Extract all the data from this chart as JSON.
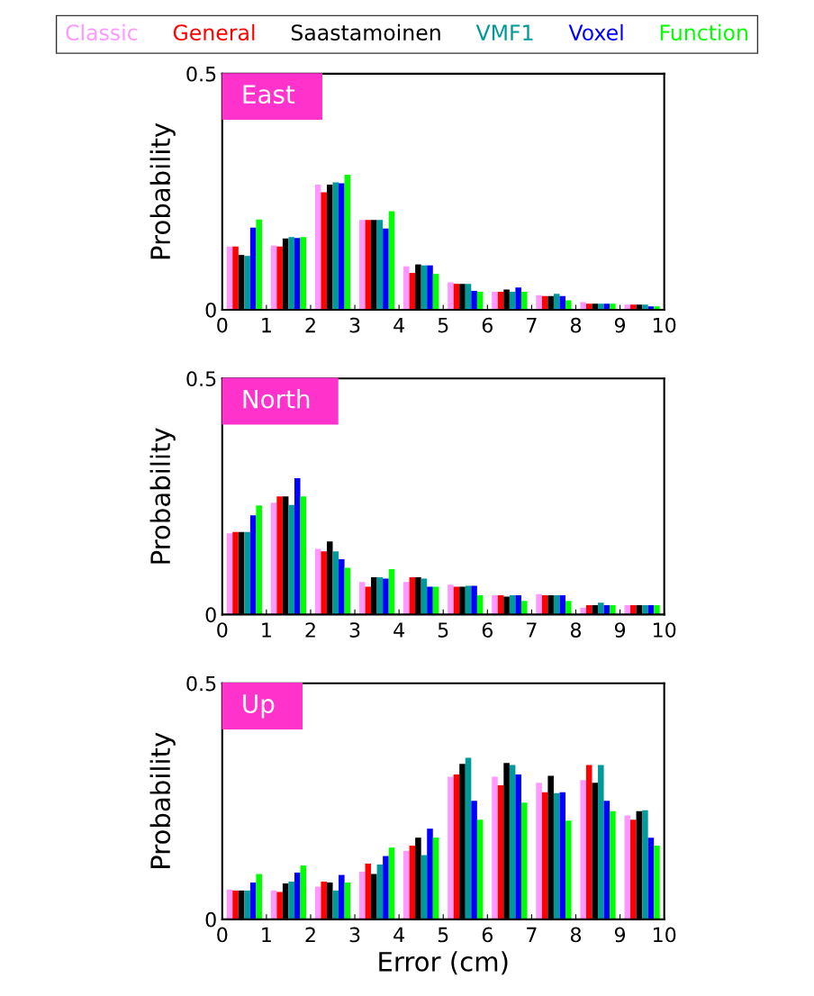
{
  "chart_data": [
    {
      "type": "bar",
      "title": "East",
      "ylabel": "Probability",
      "x": [
        0.5,
        1.5,
        2.5,
        3.5,
        4.5,
        5.5,
        6.5,
        7.5,
        8.5,
        9.5
      ],
      "xlim": [
        0,
        10
      ],
      "xticks": [
        0,
        1,
        2,
        3,
        4,
        5,
        6,
        7,
        8,
        9,
        10
      ],
      "ylim": [
        0,
        0.5
      ],
      "yticks": [
        0,
        0.5
      ],
      "grid": false,
      "legend": "top",
      "series": [
        {
          "name": "Classic",
          "color": "#ff99ff",
          "values": [
            0.134,
            0.136,
            0.265,
            0.19,
            0.092,
            0.058,
            0.038,
            0.031,
            0.016,
            0.011
          ]
        },
        {
          "name": "General",
          "color": "#ff0000",
          "values": [
            0.134,
            0.134,
            0.249,
            0.19,
            0.078,
            0.055,
            0.038,
            0.029,
            0.013,
            0.011
          ]
        },
        {
          "name": "Saastamoinen",
          "color": "#000000",
          "values": [
            0.116,
            0.151,
            0.265,
            0.19,
            0.096,
            0.055,
            0.043,
            0.029,
            0.013,
            0.011
          ]
        },
        {
          "name": "VMF1",
          "color": "#009999",
          "values": [
            0.114,
            0.154,
            0.27,
            0.19,
            0.094,
            0.055,
            0.038,
            0.034,
            0.013,
            0.011
          ]
        },
        {
          "name": "Voxel",
          "color": "#0000ff",
          "values": [
            0.174,
            0.152,
            0.268,
            0.172,
            0.094,
            0.04,
            0.047,
            0.029,
            0.013,
            0.007
          ]
        },
        {
          "name": "Function",
          "color": "#00ff00",
          "values": [
            0.191,
            0.154,
            0.286,
            0.209,
            0.076,
            0.038,
            0.038,
            0.02,
            0.013,
            0.007
          ]
        }
      ]
    },
    {
      "type": "bar",
      "title": "North",
      "ylabel": "Probability",
      "x": [
        0.5,
        1.5,
        2.5,
        3.5,
        4.5,
        5.5,
        6.5,
        7.5,
        8.5,
        9.5
      ],
      "xlim": [
        0,
        10
      ],
      "xticks": [
        0,
        1,
        2,
        3,
        4,
        5,
        6,
        7,
        8,
        9,
        10
      ],
      "ylim": [
        0,
        0.5
      ],
      "yticks": [
        0,
        0.5
      ],
      "grid": false,
      "series": [
        {
          "color": "#ff99ff",
          "values": [
            0.172,
            0.237,
            0.139,
            0.069,
            0.069,
            0.063,
            0.041,
            0.043,
            0.014,
            0.02
          ]
        },
        {
          "color": "#ff0000",
          "values": [
            0.175,
            0.25,
            0.134,
            0.059,
            0.079,
            0.059,
            0.041,
            0.041,
            0.02,
            0.02
          ]
        },
        {
          "color": "#000000",
          "values": [
            0.175,
            0.25,
            0.155,
            0.079,
            0.079,
            0.059,
            0.038,
            0.041,
            0.02,
            0.02
          ]
        },
        {
          "color": "#009999",
          "values": [
            0.175,
            0.232,
            0.134,
            0.079,
            0.076,
            0.061,
            0.041,
            0.041,
            0.025,
            0.02
          ]
        },
        {
          "color": "#0000ff",
          "values": [
            0.21,
            0.289,
            0.117,
            0.076,
            0.059,
            0.061,
            0.041,
            0.041,
            0.02,
            0.02
          ]
        },
        {
          "color": "#00ff00",
          "values": [
            0.231,
            0.25,
            0.099,
            0.096,
            0.059,
            0.041,
            0.029,
            0.029,
            0.02,
            0.02
          ]
        }
      ]
    },
    {
      "type": "bar",
      "title": "Up",
      "ylabel": "Probability",
      "xlabel": "Error (cm)",
      "x": [
        0.5,
        1.5,
        2.5,
        3.5,
        4.5,
        5.5,
        6.5,
        7.5,
        8.5,
        9.5
      ],
      "xlim": [
        0,
        10
      ],
      "xticks": [
        0,
        1,
        2,
        3,
        4,
        5,
        6,
        7,
        8,
        9,
        10
      ],
      "ylim": [
        0,
        0.5
      ],
      "yticks": [
        0,
        0.5
      ],
      "grid": false,
      "series": [
        {
          "color": "#ff99ff",
          "values": [
            0.063,
            0.061,
            0.069,
            0.101,
            0.145,
            0.302,
            0.302,
            0.289,
            0.295,
            0.22
          ]
        },
        {
          "color": "#ff0000",
          "values": [
            0.061,
            0.058,
            0.08,
            0.118,
            0.156,
            0.307,
            0.284,
            0.269,
            0.327,
            0.211
          ]
        },
        {
          "color": "#000000",
          "values": [
            0.061,
            0.076,
            0.078,
            0.096,
            0.173,
            0.329,
            0.331,
            0.304,
            0.289,
            0.229
          ]
        },
        {
          "color": "#009999",
          "values": [
            0.061,
            0.08,
            0.061,
            0.116,
            0.136,
            0.342,
            0.327,
            0.267,
            0.327,
            0.231
          ]
        },
        {
          "color": "#0000ff",
          "values": [
            0.078,
            0.099,
            0.094,
            0.134,
            0.192,
            0.251,
            0.307,
            0.269,
            0.251,
            0.173
          ]
        },
        {
          "color": "#00ff00",
          "values": [
            0.096,
            0.114,
            0.078,
            0.152,
            0.173,
            0.211,
            0.247,
            0.209,
            0.229,
            0.156
          ]
        }
      ]
    }
  ]
}
